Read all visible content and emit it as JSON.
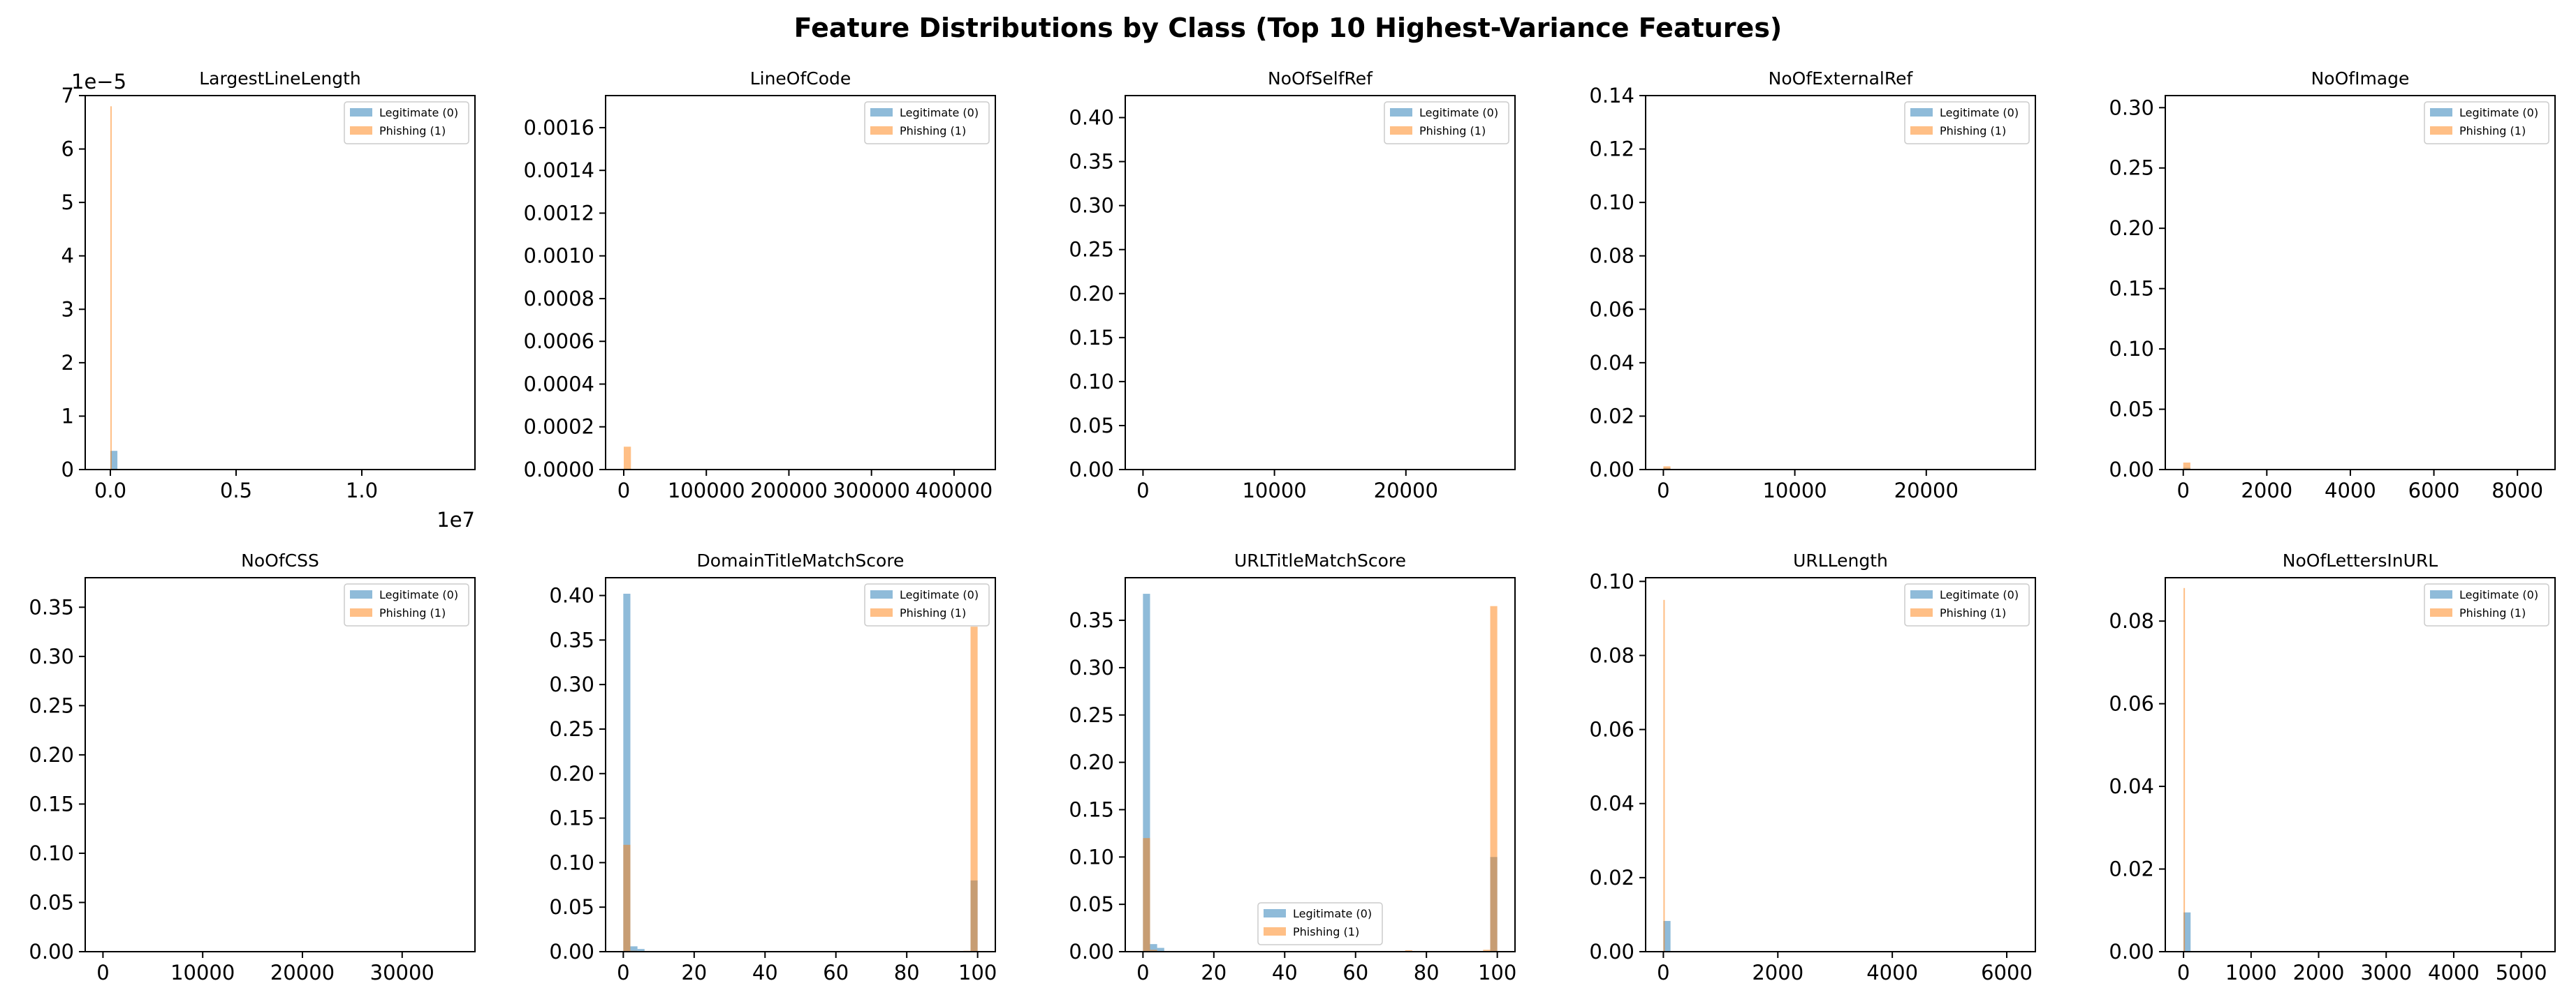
{
  "figure": {
    "title": "Feature Distributions by Class (Top 10 Highest-Variance Features)"
  },
  "colors": {
    "legit": "#1f77b4",
    "phish": "#ff7f0e",
    "bar_opacity": 0.5
  },
  "chart_data": [
    {
      "type": "bar",
      "title": "LargestLineLength",
      "xlabel": "",
      "ylabel": "",
      "xlim": [
        -1000000,
        14500000
      ],
      "ylim": [
        0,
        7e-05
      ],
      "x_ticks": [
        0,
        5000000,
        10000000
      ],
      "x_tick_labels": [
        "0.0",
        "0.5",
        "1.0"
      ],
      "y_ticks": [
        0,
        1e-05,
        2e-05,
        3e-05,
        4e-05,
        5e-05,
        6e-05,
        7e-05
      ],
      "y_tick_labels": [
        "0",
        "1",
        "2",
        "3",
        "4",
        "5",
        "6",
        "7"
      ],
      "y_offset_label": "1e−5",
      "x_offset_label": "1e7",
      "legend": {
        "placement": "top-right",
        "entries": [
          "Legitimate (0)",
          "Phishing (1)"
        ]
      },
      "grid": false,
      "series": [
        {
          "name": "Legitimate (0)",
          "bars": [
            {
              "x0": 0,
              "x1": 280000,
              "y": 3.5e-06
            }
          ]
        },
        {
          "name": "Phishing (1)",
          "bars": [
            {
              "x0": 0,
              "x1": 55000,
              "y": 6.8e-05
            }
          ]
        }
      ]
    },
    {
      "type": "bar",
      "title": "LineOfCode",
      "xlabel": "",
      "ylabel": "",
      "xlim": [
        -22000,
        450000
      ],
      "ylim": [
        0,
        0.00175
      ],
      "x_ticks": [
        0,
        100000,
        200000,
        300000,
        400000
      ],
      "x_tick_labels": [
        "0",
        "100000",
        "200000",
        "300000",
        "400000"
      ],
      "y_ticks": [
        0,
        0.0002,
        0.0004,
        0.0006,
        0.0008,
        0.001,
        0.0012,
        0.0014,
        0.0016
      ],
      "y_tick_labels": [
        "0.0000",
        "0.0002",
        "0.0004",
        "0.0006",
        "0.0008",
        "0.0010",
        "0.0012",
        "0.0014",
        "0.0016"
      ],
      "legend": {
        "placement": "top-right",
        "entries": [
          "Legitimate (0)",
          "Phishing (1)"
        ]
      },
      "grid": false,
      "series": [
        {
          "name": "Legitimate (0)",
          "bars": [
            {
              "x0": 0,
              "x1": 8700,
              "y": 4e-06
            }
          ]
        },
        {
          "name": "Phishing (1)",
          "bars": [
            {
              "x0": 0,
              "x1": 8700,
              "y": 0.000107
            }
          ]
        }
      ]
    },
    {
      "type": "bar",
      "title": "NoOfSelfRef",
      "xlabel": "",
      "ylabel": "",
      "xlim": [
        -1350,
        28300
      ],
      "ylim": [
        0,
        0.425
      ],
      "x_ticks": [
        0,
        10000,
        20000
      ],
      "x_tick_labels": [
        "0",
        "10000",
        "20000"
      ],
      "y_ticks": [
        0,
        0.05,
        0.1,
        0.15,
        0.2,
        0.25,
        0.3,
        0.35,
        0.4
      ],
      "y_tick_labels": [
        "0.00",
        "0.05",
        "0.10",
        "0.15",
        "0.20",
        "0.25",
        "0.30",
        "0.35",
        "0.40"
      ],
      "legend": {
        "placement": "top-right",
        "entries": [
          "Legitimate (0)",
          "Phishing (1)"
        ]
      },
      "grid": false,
      "series": [
        {
          "name": "Legitimate (0)",
          "bars": [
            {
              "x0": 0,
              "x1": 540,
              "y": 0.0003
            }
          ]
        },
        {
          "name": "Phishing (1)",
          "bars": [
            {
              "x0": 0,
              "x1": 540,
              "y": 0.0003
            }
          ]
        }
      ]
    },
    {
      "type": "bar",
      "title": "NoOfExternalRef",
      "xlabel": "",
      "ylabel": "",
      "xlim": [
        -1350,
        28300
      ],
      "ylim": [
        0,
        0.14
      ],
      "x_ticks": [
        0,
        10000,
        20000
      ],
      "x_tick_labels": [
        "0",
        "10000",
        "20000"
      ],
      "y_ticks": [
        0,
        0.02,
        0.04,
        0.06,
        0.08,
        0.1,
        0.12,
        0.14
      ],
      "y_tick_labels": [
        "0.00",
        "0.02",
        "0.04",
        "0.06",
        "0.08",
        "0.10",
        "0.12",
        "0.14"
      ],
      "legend": {
        "placement": "top-right",
        "entries": [
          "Legitimate (0)",
          "Phishing (1)"
        ]
      },
      "grid": false,
      "series": [
        {
          "name": "Legitimate (0)",
          "bars": [
            {
              "x0": 0,
              "x1": 540,
              "y": 0.0006
            }
          ]
        },
        {
          "name": "Phishing (1)",
          "bars": [
            {
              "x0": 0,
              "x1": 540,
              "y": 0.0012
            }
          ]
        }
      ]
    },
    {
      "type": "bar",
      "title": "NoOfImage",
      "xlabel": "",
      "ylabel": "",
      "xlim": [
        -430,
        8900
      ],
      "ylim": [
        0,
        0.31
      ],
      "x_ticks": [
        0,
        2000,
        4000,
        6000,
        8000
      ],
      "x_tick_labels": [
        "0",
        "2000",
        "4000",
        "6000",
        "8000"
      ],
      "y_ticks": [
        0,
        0.05,
        0.1,
        0.15,
        0.2,
        0.25,
        0.3
      ],
      "y_tick_labels": [
        "0.00",
        "0.05",
        "0.10",
        "0.15",
        "0.20",
        "0.25",
        "0.30"
      ],
      "legend": {
        "placement": "top-right",
        "entries": [
          "Legitimate (0)",
          "Phishing (1)"
        ]
      },
      "grid": false,
      "series": [
        {
          "name": "Legitimate (0)",
          "bars": [
            {
              "x0": 0,
              "x1": 170,
              "y": 0.0015
            }
          ]
        },
        {
          "name": "Phishing (1)",
          "bars": [
            {
              "x0": 0,
              "x1": 170,
              "y": 0.0058
            }
          ]
        }
      ]
    },
    {
      "type": "bar",
      "title": "NoOfCSS",
      "xlabel": "",
      "ylabel": "",
      "xlim": [
        -1780,
        37300
      ],
      "ylim": [
        0,
        0.38
      ],
      "x_ticks": [
        0,
        10000,
        20000,
        30000
      ],
      "x_tick_labels": [
        "0",
        "10000",
        "20000",
        "30000"
      ],
      "y_ticks": [
        0,
        0.05,
        0.1,
        0.15,
        0.2,
        0.25,
        0.3,
        0.35
      ],
      "y_tick_labels": [
        "0.00",
        "0.05",
        "0.10",
        "0.15",
        "0.20",
        "0.25",
        "0.30",
        "0.35"
      ],
      "legend": {
        "placement": "top-right",
        "entries": [
          "Legitimate (0)",
          "Phishing (1)"
        ]
      },
      "grid": false,
      "series": [
        {
          "name": "Legitimate (0)",
          "bars": [
            {
              "x0": 0,
              "x1": 720,
              "y": 0.0003
            }
          ]
        },
        {
          "name": "Phishing (1)",
          "bars": [
            {
              "x0": 0,
              "x1": 720,
              "y": 0.0003
            }
          ]
        }
      ]
    },
    {
      "type": "bar",
      "title": "DomainTitleMatchScore",
      "xlabel": "",
      "ylabel": "",
      "xlim": [
        -5,
        105
      ],
      "ylim": [
        0,
        0.42
      ],
      "x_ticks": [
        0,
        20,
        40,
        60,
        80,
        100
      ],
      "x_tick_labels": [
        "0",
        "20",
        "40",
        "60",
        "80",
        "100"
      ],
      "y_ticks": [
        0,
        0.05,
        0.1,
        0.15,
        0.2,
        0.25,
        0.3,
        0.35,
        0.4
      ],
      "y_tick_labels": [
        "0.00",
        "0.05",
        "0.10",
        "0.15",
        "0.20",
        "0.25",
        "0.30",
        "0.35",
        "0.40"
      ],
      "legend": {
        "placement": "top-right",
        "entries": [
          "Legitimate (0)",
          "Phishing (1)"
        ]
      },
      "grid": false,
      "series": [
        {
          "name": "Legitimate (0)",
          "bars": [
            {
              "x0": 0,
              "x1": 2,
              "y": 0.402
            },
            {
              "x0": 2,
              "x1": 4,
              "y": 0.006
            },
            {
              "x0": 4,
              "x1": 6,
              "y": 0.003
            },
            {
              "x0": 98,
              "x1": 100,
              "y": 0.08
            }
          ]
        },
        {
          "name": "Phishing (1)",
          "bars": [
            {
              "x0": 0,
              "x1": 2,
              "y": 0.12
            },
            {
              "x0": 2,
              "x1": 4,
              "y": 0.001
            },
            {
              "x0": 96,
              "x1": 98,
              "y": 0.001
            },
            {
              "x0": 98,
              "x1": 100,
              "y": 0.365
            }
          ]
        }
      ]
    },
    {
      "type": "bar",
      "title": "URLTitleMatchScore",
      "xlabel": "",
      "ylabel": "",
      "xlim": [
        -5,
        105
      ],
      "ylim": [
        0,
        0.395
      ],
      "x_ticks": [
        0,
        20,
        40,
        60,
        80,
        100
      ],
      "x_tick_labels": [
        "0",
        "20",
        "40",
        "60",
        "80",
        "100"
      ],
      "y_ticks": [
        0,
        0.05,
        0.1,
        0.15,
        0.2,
        0.25,
        0.3,
        0.35
      ],
      "y_tick_labels": [
        "0.00",
        "0.05",
        "0.10",
        "0.15",
        "0.20",
        "0.25",
        "0.30",
        "0.35"
      ],
      "legend": {
        "placement": "lower-center",
        "entries": [
          "Legitimate (0)",
          "Phishing (1)"
        ]
      },
      "grid": false,
      "series": [
        {
          "name": "Legitimate (0)",
          "bars": [
            {
              "x0": 0,
              "x1": 2,
              "y": 0.378
            },
            {
              "x0": 2,
              "x1": 4,
              "y": 0.008
            },
            {
              "x0": 4,
              "x1": 6,
              "y": 0.004
            },
            {
              "x0": 98,
              "x1": 100,
              "y": 0.1
            }
          ]
        },
        {
          "name": "Phishing (1)",
          "bars": [
            {
              "x0": 0,
              "x1": 2,
              "y": 0.12
            },
            {
              "x0": 2,
              "x1": 4,
              "y": 0.002
            },
            {
              "x0": 74,
              "x1": 76,
              "y": 0.0015
            },
            {
              "x0": 96,
              "x1": 98,
              "y": 0.002
            },
            {
              "x0": 98,
              "x1": 100,
              "y": 0.365
            }
          ]
        }
      ]
    },
    {
      "type": "bar",
      "title": "URLLength",
      "xlabel": "",
      "ylabel": "",
      "xlim": [
        -310,
        6500
      ],
      "ylim": [
        0,
        0.101
      ],
      "x_ticks": [
        0,
        2000,
        4000,
        6000
      ],
      "x_tick_labels": [
        "0",
        "2000",
        "4000",
        "6000"
      ],
      "y_ticks": [
        0,
        0.02,
        0.04,
        0.06,
        0.08,
        0.1
      ],
      "y_tick_labels": [
        "0.00",
        "0.02",
        "0.04",
        "0.06",
        "0.08",
        "0.10"
      ],
      "legend": {
        "placement": "top-right",
        "entries": [
          "Legitimate (0)",
          "Phishing (1)"
        ]
      },
      "grid": false,
      "series": [
        {
          "name": "Legitimate (0)",
          "bars": [
            {
              "x0": 0,
              "x1": 125,
              "y": 0.0083
            }
          ]
        },
        {
          "name": "Phishing (1)",
          "bars": [
            {
              "x0": 0,
              "x1": 25,
              "y": 0.095
            }
          ]
        }
      ]
    },
    {
      "type": "bar",
      "title": "NoOfLettersInURL",
      "xlabel": "",
      "ylabel": "",
      "xlim": [
        -270,
        5500
      ],
      "ylim": [
        0,
        0.0905
      ],
      "x_ticks": [
        0,
        1000,
        2000,
        3000,
        4000,
        5000
      ],
      "x_tick_labels": [
        "0",
        "1000",
        "2000",
        "3000",
        "4000",
        "5000"
      ],
      "y_ticks": [
        0,
        0.02,
        0.04,
        0.06,
        0.08
      ],
      "y_tick_labels": [
        "0.00",
        "0.02",
        "0.04",
        "0.06",
        "0.08"
      ],
      "legend": {
        "placement": "top-right",
        "entries": [
          "Legitimate (0)",
          "Phishing (1)"
        ]
      },
      "grid": false,
      "series": [
        {
          "name": "Legitimate (0)",
          "bars": [
            {
              "x0": 0,
              "x1": 105,
              "y": 0.0095
            }
          ]
        },
        {
          "name": "Phishing (1)",
          "bars": [
            {
              "x0": 0,
              "x1": 21,
              "y": 0.088
            }
          ]
        }
      ]
    }
  ]
}
